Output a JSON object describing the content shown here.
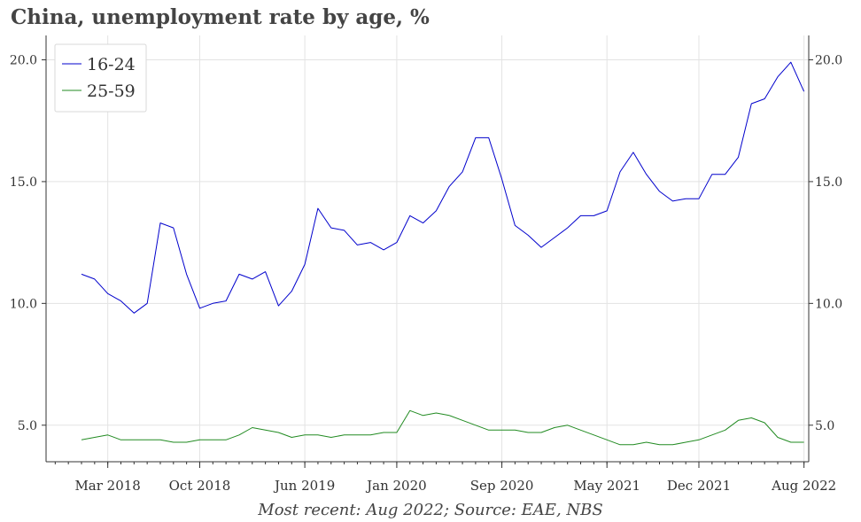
{
  "title": "China, unemployment rate by age, %",
  "source": "Most recent: Aug 2022; Source: EAE, NBS",
  "chart_data": {
    "type": "line",
    "title": "China, unemployment rate by age, %",
    "xlabel": "",
    "ylabel": "",
    "x_start": "2018-01",
    "x": [
      "2018-01",
      "2018-02",
      "2018-03",
      "2018-04",
      "2018-05",
      "2018-06",
      "2018-07",
      "2018-08",
      "2018-09",
      "2018-10",
      "2018-11",
      "2018-12",
      "2019-01",
      "2019-02",
      "2019-03",
      "2019-04",
      "2019-05",
      "2019-06",
      "2019-07",
      "2019-08",
      "2019-09",
      "2019-10",
      "2019-11",
      "2019-12",
      "2020-01",
      "2020-02",
      "2020-03",
      "2020-04",
      "2020-05",
      "2020-06",
      "2020-07",
      "2020-08",
      "2020-09",
      "2020-10",
      "2020-11",
      "2020-12",
      "2021-01",
      "2021-02",
      "2021-03",
      "2021-04",
      "2021-05",
      "2021-06",
      "2021-07",
      "2021-08",
      "2021-09",
      "2021-10",
      "2021-11",
      "2021-12",
      "2022-01",
      "2022-02",
      "2022-03",
      "2022-04",
      "2022-05",
      "2022-06",
      "2022-07",
      "2022-08"
    ],
    "x_ticks": [
      "Mar 2018",
      "Oct 2018",
      "Jun 2019",
      "Jan 2020",
      "Sep 2020",
      "May 2021",
      "Dec 2021",
      "Aug 2022"
    ],
    "y_ticks": [
      "5.0",
      "10.0",
      "15.0",
      "20.0"
    ],
    "ylim": [
      3.5,
      21.0
    ],
    "grid": true,
    "legend_position": "top-left",
    "series": [
      {
        "name": "16-24",
        "color": "#0000cc",
        "values": [
          11.2,
          11.0,
          10.4,
          10.1,
          9.6,
          10.0,
          13.3,
          13.1,
          11.2,
          9.8,
          10.0,
          10.1,
          11.2,
          11.0,
          11.3,
          9.9,
          10.5,
          11.6,
          13.9,
          13.1,
          13.0,
          12.4,
          12.5,
          12.2,
          12.5,
          13.6,
          13.3,
          13.8,
          14.8,
          15.4,
          16.8,
          16.8,
          15.1,
          13.2,
          12.8,
          12.3,
          12.7,
          13.1,
          13.6,
          13.6,
          13.8,
          15.4,
          16.2,
          15.3,
          14.6,
          14.2,
          14.3,
          14.3,
          15.3,
          15.3,
          16.0,
          18.2,
          18.4,
          19.3,
          19.9,
          18.7
        ]
      },
      {
        "name": "25-59",
        "color": "#228b22",
        "values": [
          4.4,
          4.5,
          4.6,
          4.4,
          4.4,
          4.4,
          4.4,
          4.3,
          4.3,
          4.4,
          4.4,
          4.4,
          4.6,
          4.9,
          4.8,
          4.7,
          4.5,
          4.6,
          4.6,
          4.5,
          4.6,
          4.6,
          4.6,
          4.7,
          4.7,
          5.6,
          5.4,
          5.5,
          5.4,
          5.2,
          5.0,
          4.8,
          4.8,
          4.8,
          4.7,
          4.7,
          4.9,
          5.0,
          4.8,
          4.6,
          4.4,
          4.2,
          4.2,
          4.3,
          4.2,
          4.2,
          4.3,
          4.4,
          4.6,
          4.8,
          5.2,
          5.3,
          5.1,
          4.5,
          4.3,
          4.3
        ]
      }
    ]
  }
}
